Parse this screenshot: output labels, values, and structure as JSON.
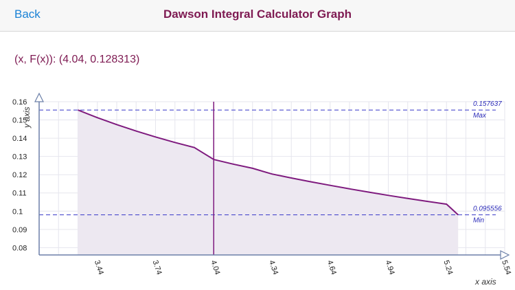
{
  "navbar": {
    "back_label": "Back",
    "title": "Dawson Integral Calculator Graph"
  },
  "readout": {
    "text": "(x, F(x)): (4.04, 0.128313)"
  },
  "chart_data": {
    "type": "area",
    "xlabel": "x axis",
    "ylabel": "y axis",
    "x_ticks": [
      "3.44",
      "3.74",
      "4.04",
      "4.34",
      "4.64",
      "4.94",
      "5.24",
      "5.54"
    ],
    "y_ticks": [
      "0.08",
      "0.09",
      "0.1",
      "0.11",
      "0.12",
      "0.13",
      "0.14",
      "0.15",
      "0.16"
    ],
    "xlim": [
      3.14,
      5.54
    ],
    "ylim": [
      0.076,
      0.16
    ],
    "x": [
      3.34,
      3.44,
      3.54,
      3.64,
      3.74,
      3.84,
      3.94,
      4.04,
      4.14,
      4.24,
      4.34,
      4.44,
      4.54,
      4.64,
      4.74,
      4.84,
      4.94,
      5.04,
      5.14,
      5.24,
      5.3
    ],
    "y": [
      0.155437,
      0.15127,
      0.147442,
      0.143922,
      0.140674,
      0.137669,
      0.134886,
      0.128313,
      0.1258,
      0.12349,
      0.12036,
      0.11818,
      0.11613,
      0.11414,
      0.11224,
      0.11042,
      0.10866,
      0.10698,
      0.10537,
      0.10382,
      0.098
    ],
    "selected": {
      "x": 4.04,
      "y": 0.128313
    },
    "max": {
      "value": "0.157637",
      "label": "Max",
      "y": 0.155437
    },
    "min": {
      "value": "0.095556",
      "label": "Min",
      "y": 0.098
    },
    "line_color": "#7e1a7e",
    "fill_color": "#ede8f1",
    "ref_line_color": "#3535c8",
    "grid": true
  }
}
